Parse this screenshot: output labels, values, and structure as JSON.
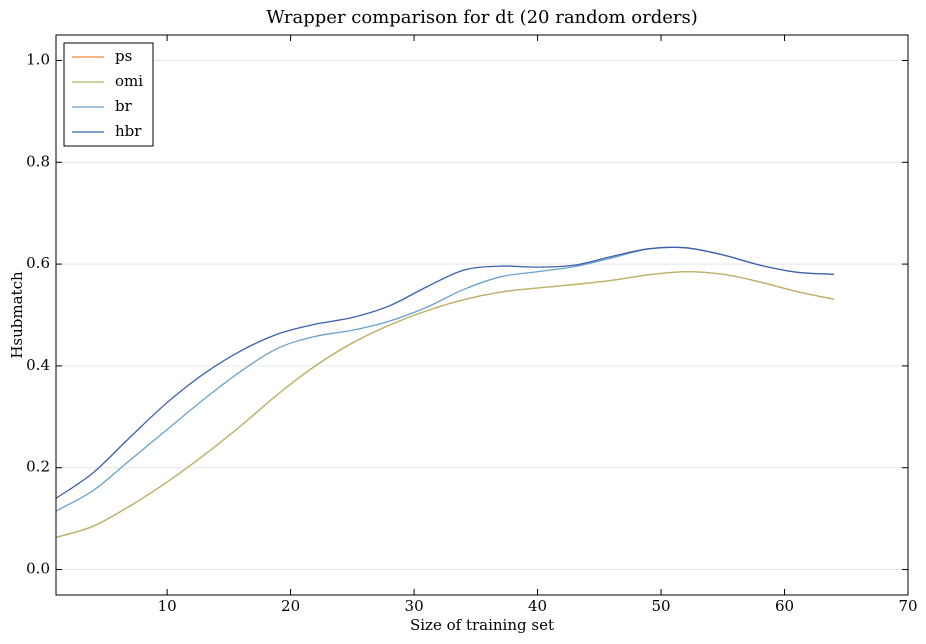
{
  "chart_data": {
    "type": "line",
    "title": "Wrapper comparison for dt (20 random orders)",
    "xlabel": "Size of training set",
    "ylabel": "Hsubmatch",
    "x": [
      1,
      4,
      7,
      10,
      13,
      16,
      19,
      22,
      25,
      28,
      31,
      34,
      37,
      40,
      43,
      46,
      49,
      52,
      55,
      58,
      61,
      64
    ],
    "series": [
      {
        "name": "ps",
        "color": "#ee8a3c",
        "values": [
          0.063,
          0.085,
          0.125,
          0.172,
          0.225,
          0.283,
          0.345,
          0.4,
          0.445,
          0.48,
          0.508,
          0.53,
          0.545,
          0.553,
          0.56,
          0.568,
          0.579,
          0.585,
          0.58,
          0.565,
          0.546,
          0.531
        ]
      },
      {
        "name": "omi",
        "color": "#b9b56e",
        "values": [
          0.063,
          0.085,
          0.125,
          0.172,
          0.225,
          0.283,
          0.345,
          0.4,
          0.445,
          0.48,
          0.508,
          0.53,
          0.545,
          0.553,
          0.56,
          0.568,
          0.579,
          0.585,
          0.58,
          0.565,
          0.546,
          0.531
        ]
      },
      {
        "name": "br",
        "color": "#6aa0cc",
        "values": [
          0.115,
          0.155,
          0.215,
          0.275,
          0.335,
          0.39,
          0.435,
          0.458,
          0.47,
          0.488,
          0.515,
          0.55,
          0.575,
          0.585,
          0.595,
          0.612,
          0.63,
          0.632,
          0.618,
          0.598,
          0.584,
          0.58
        ]
      },
      {
        "name": "hbr",
        "color": "#3c5fae",
        "values": [
          0.14,
          0.19,
          0.26,
          0.328,
          0.385,
          0.43,
          0.463,
          0.482,
          0.495,
          0.518,
          0.555,
          0.588,
          0.596,
          0.594,
          0.598,
          0.615,
          0.63,
          0.632,
          0.618,
          0.598,
          0.584,
          0.58
        ]
      }
    ],
    "xlim": [
      1,
      70
    ],
    "xticks": [
      10,
      20,
      30,
      40,
      50,
      60,
      70
    ],
    "ylim": [
      -0.05,
      1.05
    ],
    "yticks": [
      {
        "value": 0,
        "label": "0.0"
      },
      0.2,
      0.4,
      0.6,
      0.8,
      {
        "value": 1,
        "label": "1.0"
      }
    ],
    "grid": true,
    "legend": "upper left"
  }
}
